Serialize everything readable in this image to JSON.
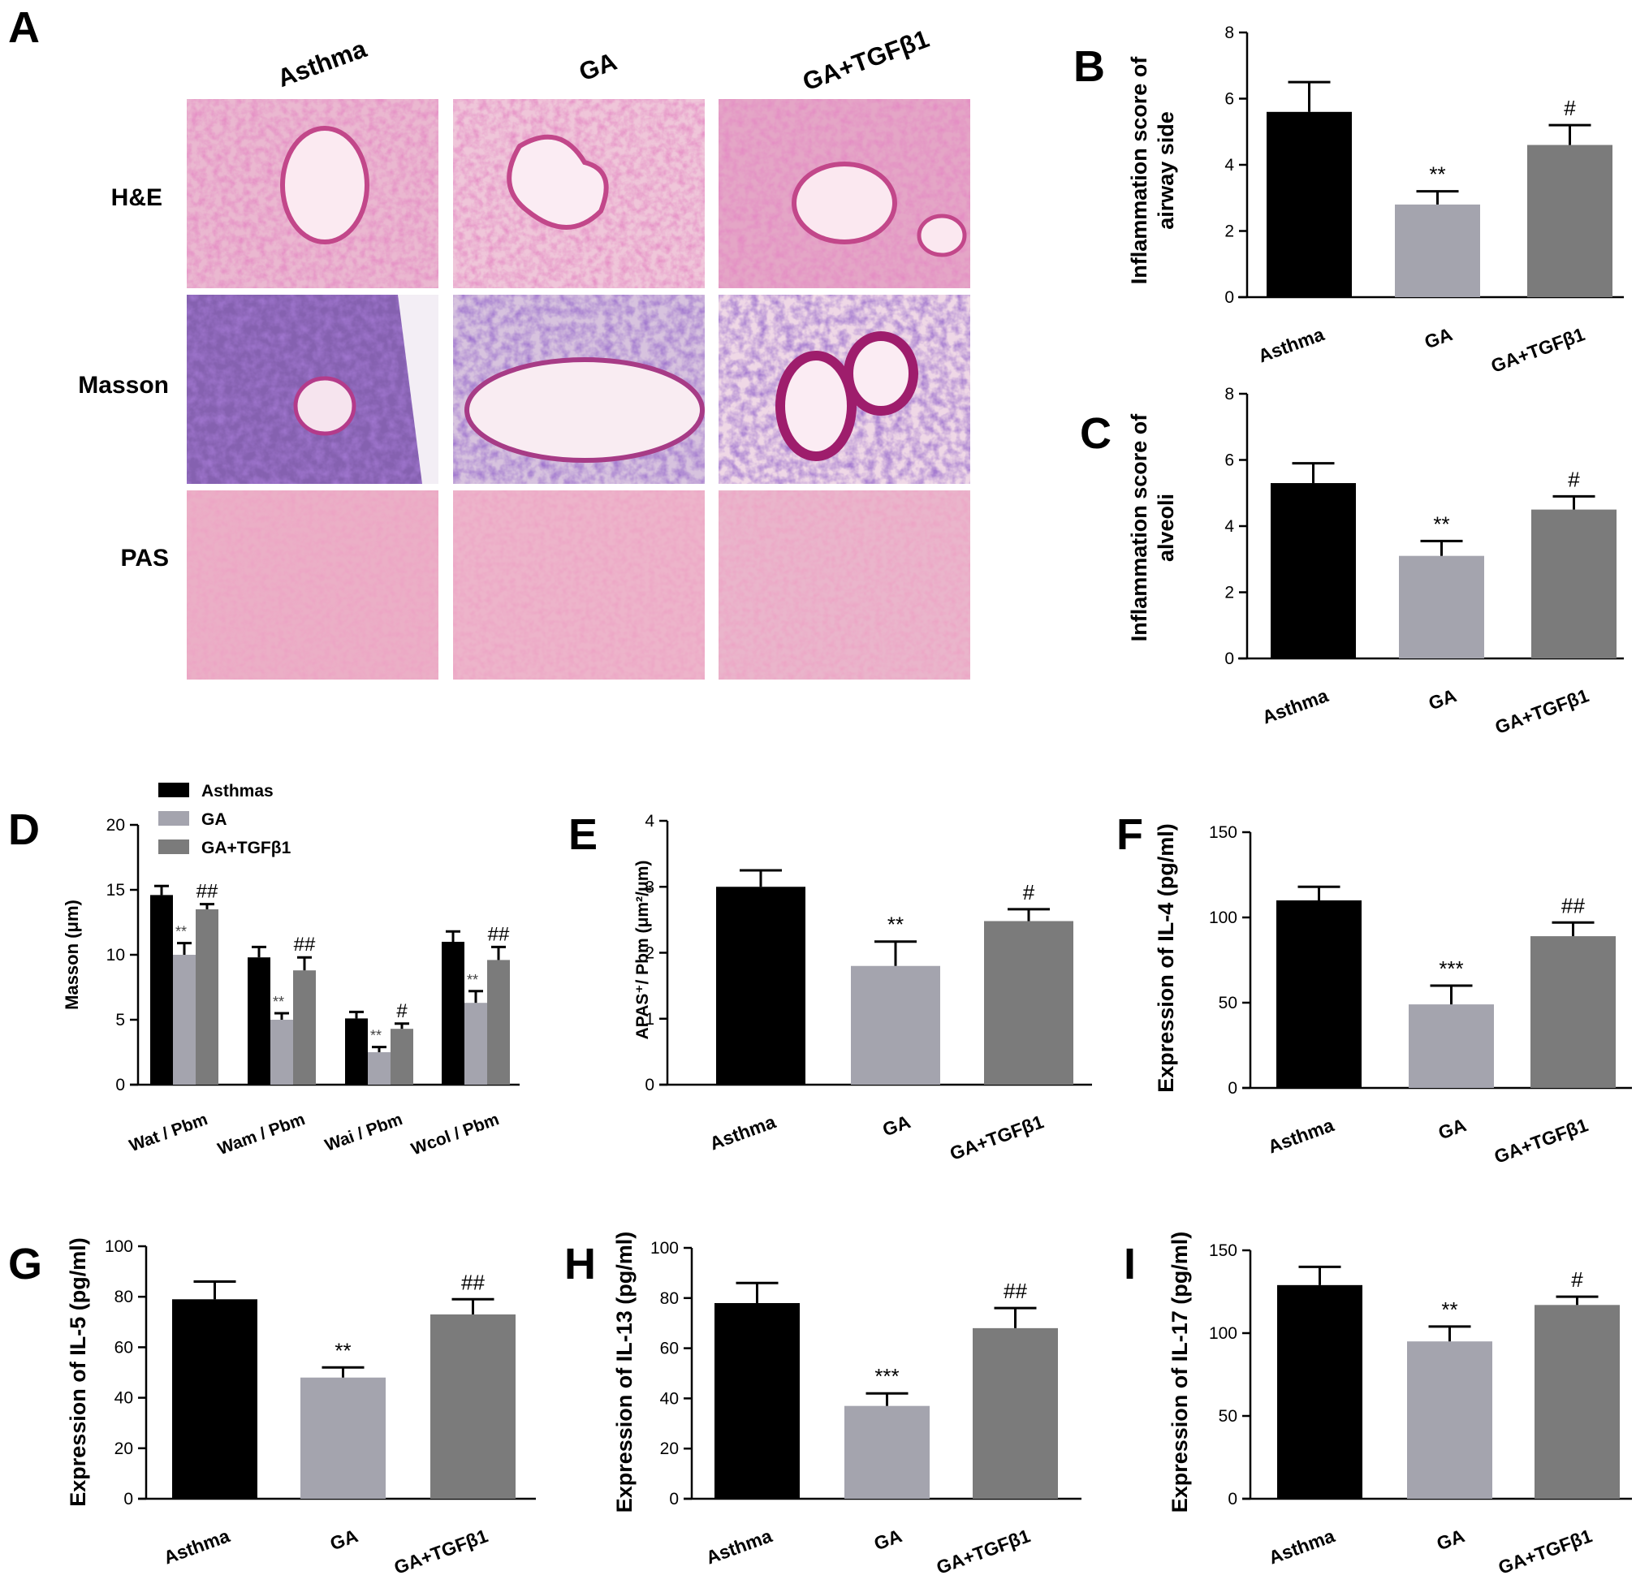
{
  "colors": {
    "black": "#000000",
    "light_gray": "#a4a4ae",
    "mid_gray": "#7b7b7b",
    "he_stain": "#e9b6cf",
    "masson_stain": "#7a4fa8",
    "pas_stain": "#ecaec5"
  },
  "panels": {
    "A": {
      "letter": "A",
      "columns": [
        "Asthma",
        "GA",
        "GA+TGFβ1"
      ],
      "rows": [
        "H&E",
        "Masson",
        "PAS"
      ]
    }
  },
  "chart_data": [
    {
      "panel": "B",
      "type": "bar",
      "categories": [
        "Asthma",
        "GA",
        "GA+TGFβ1"
      ],
      "values": [
        5.6,
        2.8,
        4.6
      ],
      "errors": [
        0.9,
        0.4,
        0.6
      ],
      "annotations": [
        "",
        "**",
        "#"
      ],
      "ylabel": [
        "Inflammation score of",
        "airway side"
      ],
      "ylim": [
        0,
        8
      ],
      "yticks": [
        "0",
        "2",
        "4",
        "6",
        "8"
      ]
    },
    {
      "panel": "C",
      "type": "bar",
      "categories": [
        "Asthma",
        "GA",
        "GA+TGFβ1"
      ],
      "values": [
        5.3,
        3.1,
        4.5
      ],
      "errors": [
        0.6,
        0.45,
        0.4
      ],
      "annotations": [
        "",
        "**",
        "#"
      ],
      "ylabel": [
        "Inflammation score of",
        "alveoli"
      ],
      "ylim": [
        0,
        8
      ],
      "yticks": [
        "0",
        "2",
        "4",
        "6",
        "8"
      ]
    },
    {
      "panel": "D",
      "type": "bar",
      "categories": [
        "Wat / Pbm",
        "Wam / Pbm",
        "Wai / Pbm",
        "Wcol / Pbm"
      ],
      "series": [
        {
          "name": "Asthmas",
          "values": [
            14.6,
            9.8,
            5.1,
            11.0
          ],
          "errors": [
            0.7,
            0.8,
            0.5,
            0.8
          ],
          "annotations": [
            "",
            "",
            "",
            ""
          ]
        },
        {
          "name": "GA",
          "values": [
            10.0,
            5.0,
            2.5,
            6.3
          ],
          "errors": [
            0.9,
            0.5,
            0.4,
            0.9
          ],
          "annotations": [
            "**",
            "**",
            "**",
            "**"
          ]
        },
        {
          "name": "GA+TGFβ1",
          "values": [
            13.5,
            8.8,
            4.3,
            9.6
          ],
          "errors": [
            0.4,
            1.0,
            0.4,
            1.0
          ],
          "annotations": [
            "##",
            "##",
            "#",
            "##"
          ]
        }
      ],
      "ylabel": [
        "Masson (μm)"
      ],
      "ylim": [
        0,
        20
      ],
      "yticks": [
        "0",
        "5",
        "10",
        "15",
        "20"
      ],
      "legend": "top-left"
    },
    {
      "panel": "E",
      "type": "bar",
      "categories": [
        "Asthma",
        "GA",
        "GA+TGFβ1"
      ],
      "values": [
        3.0,
        1.8,
        2.48
      ],
      "errors": [
        0.25,
        0.37,
        0.18
      ],
      "annotations": [
        "",
        "**",
        "#"
      ],
      "ylabel": [
        "APAS⁺/ Pbm (μm²/μm)"
      ],
      "ylim": [
        0,
        4
      ],
      "yticks": [
        "0",
        "1",
        "2",
        "3",
        "4"
      ]
    },
    {
      "panel": "F",
      "type": "bar",
      "categories": [
        "Asthma",
        "GA",
        "GA+TGFβ1"
      ],
      "values": [
        110,
        49,
        89
      ],
      "errors": [
        8,
        11,
        8
      ],
      "annotations": [
        "",
        "***",
        "##"
      ],
      "ylabel": [
        "Expression of IL-4 (pg/ml)"
      ],
      "ylim": [
        0,
        150
      ],
      "yticks": [
        "0",
        "50",
        "100",
        "150"
      ]
    },
    {
      "panel": "G",
      "type": "bar",
      "categories": [
        "Asthma",
        "GA",
        "GA+TGFβ1"
      ],
      "values": [
        79,
        48,
        73
      ],
      "errors": [
        7,
        4,
        6
      ],
      "annotations": [
        "",
        "**",
        "##"
      ],
      "ylabel": [
        "Expression of IL-5 (pg/ml)"
      ],
      "ylim": [
        0,
        100
      ],
      "yticks": [
        "0",
        "20",
        "40",
        "60",
        "80",
        "100"
      ]
    },
    {
      "panel": "H",
      "type": "bar",
      "categories": [
        "Asthma",
        "GA",
        "GA+TGFβ1"
      ],
      "values": [
        78,
        37,
        68
      ],
      "errors": [
        8,
        5,
        8
      ],
      "annotations": [
        "",
        "***",
        "##"
      ],
      "ylabel": [
        "Expression of IL-13 (pg/ml)"
      ],
      "ylim": [
        0,
        100
      ],
      "yticks": [
        "0",
        "20",
        "40",
        "60",
        "80",
        "100"
      ]
    },
    {
      "panel": "I",
      "type": "bar",
      "categories": [
        "Asthma",
        "GA",
        "GA+TGFβ1"
      ],
      "values": [
        129,
        95,
        117
      ],
      "errors": [
        11,
        9,
        5
      ],
      "annotations": [
        "",
        "**",
        "#"
      ],
      "ylabel": [
        "Expression of IL-17 (pg/ml)"
      ],
      "ylim": [
        0,
        150
      ],
      "yticks": [
        "0",
        "50",
        "100",
        "150"
      ]
    }
  ]
}
